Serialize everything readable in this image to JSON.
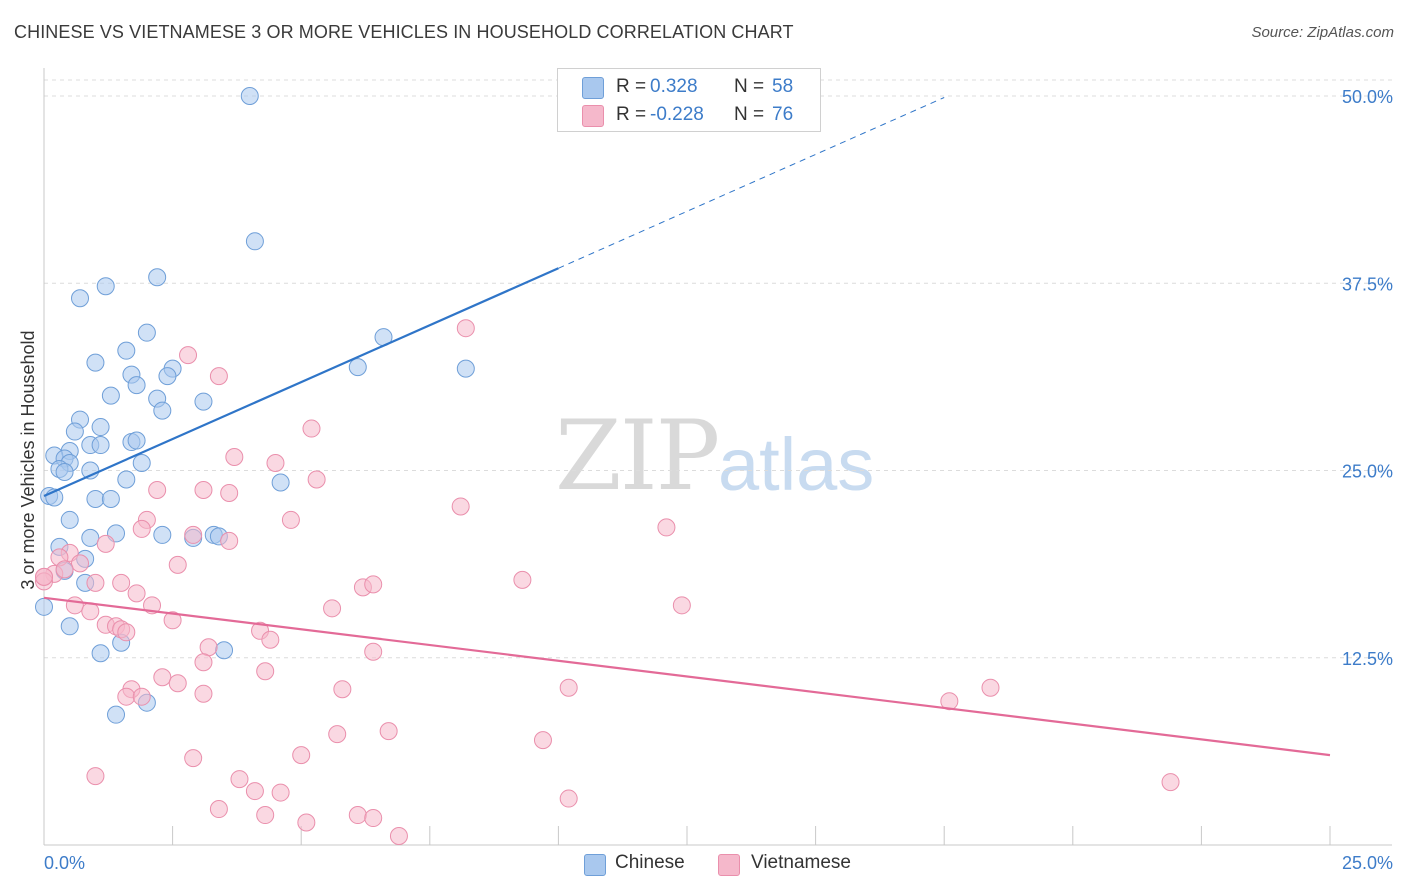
{
  "title": "CHINESE VS VIETNAMESE 3 OR MORE VEHICLES IN HOUSEHOLD CORRELATION CHART",
  "source": "Source: ZipAtlas.com",
  "watermark": {
    "zip": "ZIP",
    "atlas": "atlas"
  },
  "colors": {
    "chinese_fill": "#a9c8ee",
    "chinese_stroke": "#6f9fd8",
    "chinese_line": "#2f75c8",
    "vietnamese_fill": "#f5b8cb",
    "vietnamese_stroke": "#ea8fac",
    "vietnamese_line": "#e36a97",
    "axis_label": "#3d7cc9",
    "grid": "#dcdcdc"
  },
  "legend": {
    "rows": [
      {
        "r_label": "R =",
        "r_value": "0.328",
        "n_label": "N =",
        "n_value": "58"
      },
      {
        "r_label": "R =",
        "r_value": "-0.228",
        "n_label": "N =",
        "n_value": "76"
      }
    ]
  },
  "bottom_legend": {
    "chinese": "Chinese",
    "vietnamese": "Vietnamese"
  },
  "chart_data": {
    "type": "scatter",
    "xlabel": "",
    "ylabel": "3 or more Vehicles in Household",
    "x_tick_labels": [
      "0.0%",
      "25.0%"
    ],
    "y_tick_labels": [
      "12.5%",
      "25.0%",
      "37.5%",
      "50.0%"
    ],
    "xlim": [
      0,
      25
    ],
    "ylim": [
      0,
      50
    ],
    "y_ticks": [
      12.5,
      25.0,
      37.5,
      50.0
    ],
    "grid": true,
    "series": [
      {
        "name": "Chinese",
        "trend": {
          "x0": 0,
          "y0": 23.3,
          "x1": 10,
          "y1": 38.5,
          "dash_to_x": 17.5
        },
        "points": [
          [
            4.0,
            50.0
          ],
          [
            4.1,
            40.3
          ],
          [
            2.2,
            37.9
          ],
          [
            1.2,
            37.3
          ],
          [
            0.7,
            36.5
          ],
          [
            2.0,
            34.2
          ],
          [
            6.6,
            33.9
          ],
          [
            1.6,
            33.0
          ],
          [
            1.0,
            32.2
          ],
          [
            6.1,
            31.9
          ],
          [
            2.5,
            31.8
          ],
          [
            8.2,
            31.8
          ],
          [
            1.7,
            31.4
          ],
          [
            1.8,
            30.7
          ],
          [
            2.4,
            31.3
          ],
          [
            1.3,
            30.0
          ],
          [
            2.2,
            29.8
          ],
          [
            3.1,
            29.6
          ],
          [
            2.3,
            29.0
          ],
          [
            0.7,
            28.4
          ],
          [
            1.1,
            27.9
          ],
          [
            0.6,
            27.6
          ],
          [
            1.7,
            26.9
          ],
          [
            1.8,
            27.0
          ],
          [
            0.9,
            26.7
          ],
          [
            1.1,
            26.7
          ],
          [
            0.5,
            26.3
          ],
          [
            0.2,
            26.0
          ],
          [
            0.4,
            25.8
          ],
          [
            0.5,
            25.5
          ],
          [
            0.3,
            25.1
          ],
          [
            0.4,
            24.9
          ],
          [
            0.9,
            25.0
          ],
          [
            1.9,
            25.5
          ],
          [
            1.6,
            24.4
          ],
          [
            4.6,
            24.2
          ],
          [
            0.1,
            23.3
          ],
          [
            0.2,
            23.2
          ],
          [
            1.0,
            23.1
          ],
          [
            1.3,
            23.1
          ],
          [
            0.5,
            21.7
          ],
          [
            1.4,
            20.8
          ],
          [
            2.3,
            20.7
          ],
          [
            3.3,
            20.7
          ],
          [
            3.4,
            20.6
          ],
          [
            0.9,
            20.5
          ],
          [
            0.3,
            19.9
          ],
          [
            0.8,
            19.1
          ],
          [
            0.8,
            17.5
          ],
          [
            0.0,
            15.9
          ],
          [
            0.5,
            14.6
          ],
          [
            1.5,
            13.5
          ],
          [
            3.5,
            13.0
          ],
          [
            1.1,
            12.8
          ],
          [
            1.4,
            8.7
          ],
          [
            2.0,
            9.5
          ],
          [
            0.4,
            18.3
          ],
          [
            2.9,
            20.5
          ]
        ]
      },
      {
        "name": "Vietnamese",
        "trend": {
          "x0": 0,
          "y0": 16.5,
          "x1": 25,
          "y1": 6.0
        },
        "points": [
          [
            8.2,
            34.5
          ],
          [
            2.8,
            32.7
          ],
          [
            3.4,
            31.3
          ],
          [
            5.2,
            27.8
          ],
          [
            3.7,
            25.9
          ],
          [
            4.5,
            25.5
          ],
          [
            5.3,
            24.4
          ],
          [
            2.2,
            23.7
          ],
          [
            3.1,
            23.7
          ],
          [
            3.6,
            23.5
          ],
          [
            8.1,
            22.6
          ],
          [
            4.8,
            21.7
          ],
          [
            2.0,
            21.7
          ],
          [
            1.9,
            21.1
          ],
          [
            12.1,
            21.2
          ],
          [
            2.9,
            20.7
          ],
          [
            3.6,
            20.3
          ],
          [
            1.2,
            20.1
          ],
          [
            0.5,
            19.5
          ],
          [
            0.3,
            19.2
          ],
          [
            0.7,
            18.8
          ],
          [
            2.6,
            18.7
          ],
          [
            0.2,
            18.1
          ],
          [
            0.0,
            17.9
          ],
          [
            0.4,
            18.4
          ],
          [
            1.0,
            17.5
          ],
          [
            1.5,
            17.5
          ],
          [
            6.2,
            17.2
          ],
          [
            6.4,
            17.4
          ],
          [
            9.3,
            17.7
          ],
          [
            1.8,
            16.8
          ],
          [
            0.6,
            16.0
          ],
          [
            2.1,
            16.0
          ],
          [
            5.6,
            15.8
          ],
          [
            12.4,
            16.0
          ],
          [
            0.9,
            15.6
          ],
          [
            2.5,
            15.0
          ],
          [
            1.2,
            14.7
          ],
          [
            1.4,
            14.6
          ],
          [
            1.5,
            14.4
          ],
          [
            1.6,
            14.2
          ],
          [
            4.2,
            14.3
          ],
          [
            4.4,
            13.7
          ],
          [
            3.2,
            13.2
          ],
          [
            3.1,
            12.2
          ],
          [
            6.4,
            12.9
          ],
          [
            4.3,
            11.6
          ],
          [
            2.3,
            11.2
          ],
          [
            2.6,
            10.8
          ],
          [
            1.7,
            10.4
          ],
          [
            1.6,
            9.9
          ],
          [
            1.9,
            9.9
          ],
          [
            3.1,
            10.1
          ],
          [
            5.8,
            10.4
          ],
          [
            10.2,
            10.5
          ],
          [
            17.6,
            9.6
          ],
          [
            18.4,
            10.5
          ],
          [
            5.7,
            7.4
          ],
          [
            6.7,
            7.6
          ],
          [
            9.7,
            7.0
          ],
          [
            5.0,
            6.0
          ],
          [
            2.9,
            5.8
          ],
          [
            1.0,
            4.6
          ],
          [
            3.8,
            4.4
          ],
          [
            4.1,
            3.6
          ],
          [
            4.6,
            3.5
          ],
          [
            10.2,
            3.1
          ],
          [
            3.4,
            2.4
          ],
          [
            4.3,
            2.0
          ],
          [
            6.1,
            2.0
          ],
          [
            6.4,
            1.8
          ],
          [
            5.1,
            1.5
          ],
          [
            6.9,
            0.6
          ],
          [
            21.9,
            4.2
          ],
          [
            0.0,
            17.6
          ],
          [
            0.0,
            17.9
          ]
        ]
      }
    ]
  }
}
